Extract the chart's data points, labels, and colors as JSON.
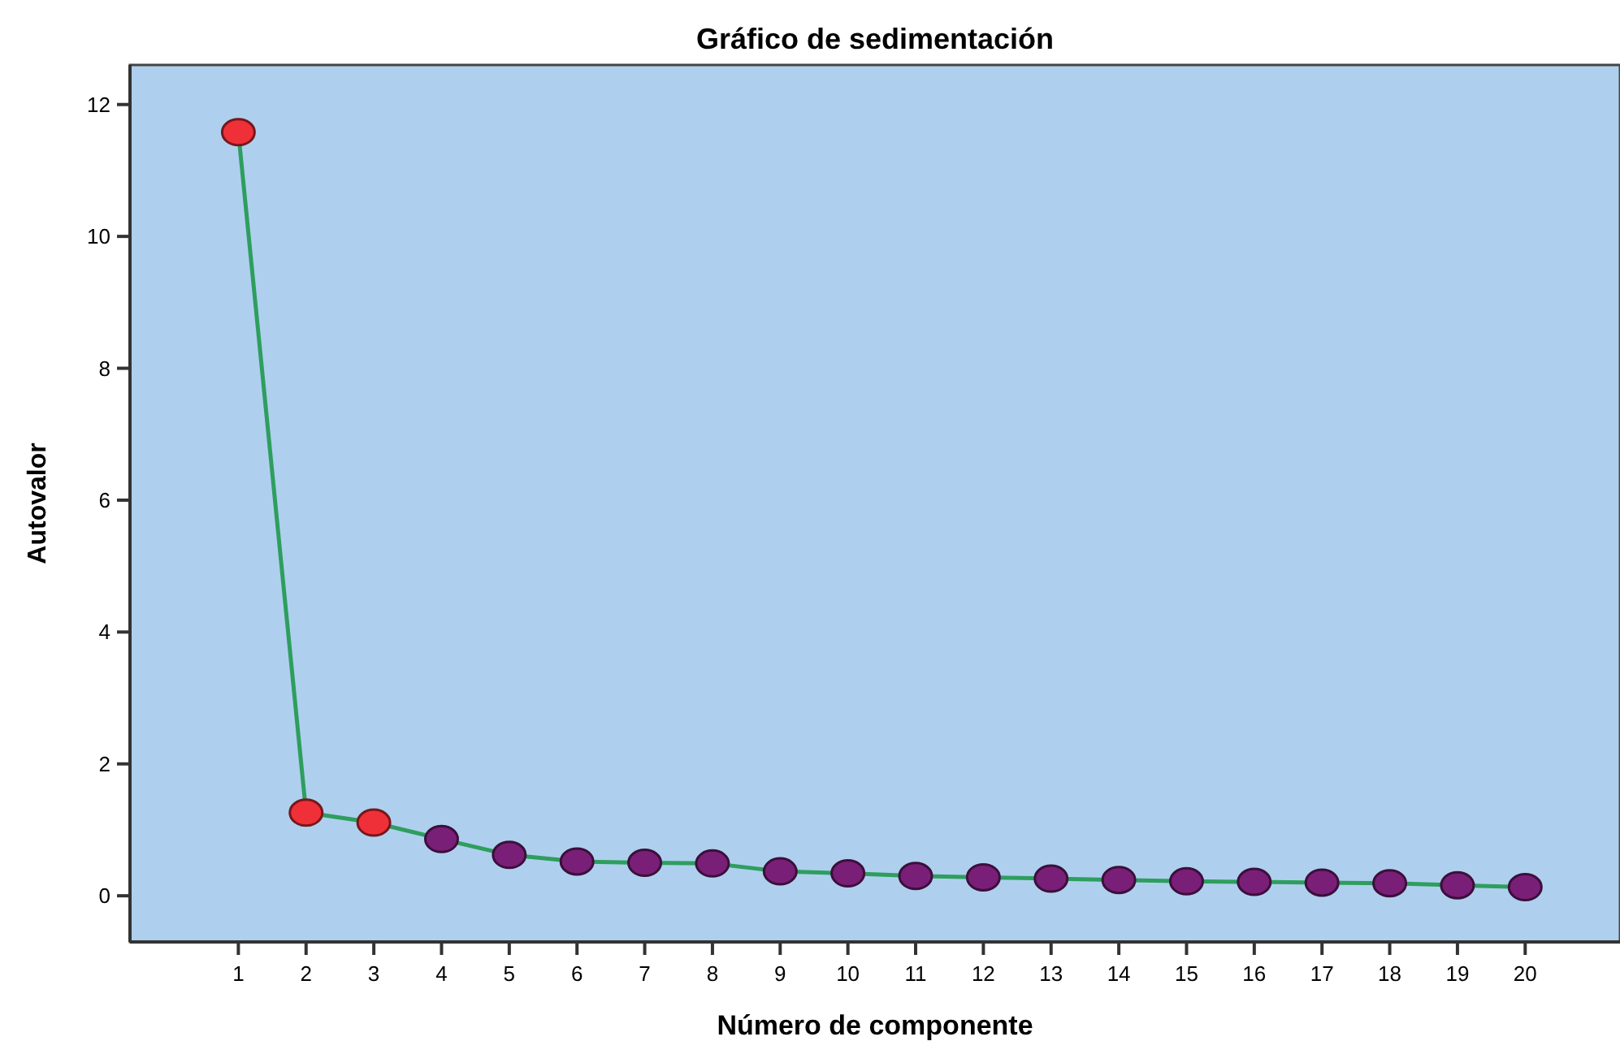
{
  "chart_data": {
    "type": "line",
    "title": "Gráfico de sedimentación",
    "xlabel": "Número de componente",
    "ylabel": "Autovalor",
    "x": [
      1,
      2,
      3,
      4,
      5,
      6,
      7,
      8,
      9,
      10,
      11,
      12,
      13,
      14,
      15,
      16,
      17,
      18,
      19,
      20
    ],
    "series": [
      {
        "color": "#2e9e5e",
        "colors": [
          "#f03038",
          "#f03038",
          "#f03038",
          "#7a1f78",
          "#7a1f78",
          "#7a1f78",
          "#7a1f78",
          "#7a1f78",
          "#7a1f78",
          "#7a1f78",
          "#7a1f78",
          "#7a1f78",
          "#7a1f78",
          "#7a1f78",
          "#7a1f78",
          "#7a1f78",
          "#7a1f78",
          "#7a1f78",
          "#7a1f78",
          "#7a1f78"
        ],
        "values": [
          11.58,
          1.26,
          1.11,
          0.86,
          0.62,
          0.52,
          0.5,
          0.49,
          0.37,
          0.34,
          0.3,
          0.28,
          0.26,
          0.24,
          0.22,
          0.21,
          0.2,
          0.19,
          0.16,
          0.13
        ]
      }
    ],
    "xlim": [
      -0.6,
      21.4
    ],
    "xticks": [
      1,
      2,
      3,
      4,
      5,
      6,
      7,
      8,
      9,
      10,
      11,
      12,
      13,
      14,
      15,
      16,
      17,
      18,
      19,
      20
    ],
    "ylim": [
      -0.7,
      12.6
    ],
    "yticks": [
      0,
      2,
      4,
      6,
      8,
      10,
      12
    ],
    "grid": false,
    "marker": "circle",
    "line_style": "solid"
  }
}
